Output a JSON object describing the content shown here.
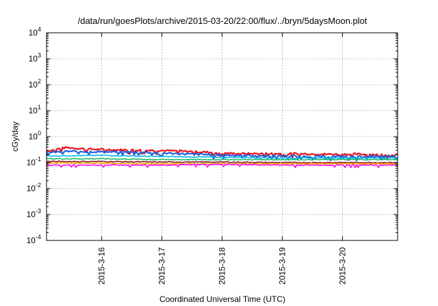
{
  "chart_data": {
    "type": "line",
    "title": "/data/run/goesPlots/archive/2015-03-20/22:00/flux/../bryn/5daysMoon.plot",
    "xlabel": "Coordinated Universal Time (UTC)",
    "ylabel": "cGy/day",
    "yscale": "log",
    "ylim": [
      0.0001,
      10000
    ],
    "xlim": [
      "2015-03-15 02:00",
      "2015-03-20 22:00"
    ],
    "x_ticks": [
      "2015-3-16",
      "2015-3-17",
      "2015-3-18",
      "2015-3-19",
      "2015-3-20"
    ],
    "y_ticks": [
      {
        "base": "10",
        "exp": "4"
      },
      {
        "base": "10",
        "exp": "3"
      },
      {
        "base": "10",
        "exp": "2"
      },
      {
        "base": "10",
        "exp": "1"
      },
      {
        "base": "10",
        "exp": "0"
      },
      {
        "base": "10",
        "exp": "-1"
      },
      {
        "base": "10",
        "exp": "-2"
      },
      {
        "base": "10",
        "exp": "-3"
      },
      {
        "base": "10",
        "exp": "-4"
      }
    ],
    "grid": true,
    "legend": false,
    "colors": [
      "#e8111b",
      "#1f5fe0",
      "#00b8e8",
      "#18b86a",
      "#8b1a1a",
      "#ffaa00",
      "#ff00ff"
    ],
    "series": [
      {
        "color": "#e8111b",
        "x": [
          "2015-03-15 02:00",
          "2015-03-15 06:00",
          "2015-03-15 10:00",
          "2015-03-15 18:00",
          "2015-03-16 06:00",
          "2015-03-16 18:00",
          "2015-03-17 06:00",
          "2015-03-17 18:00",
          "2015-03-18 06:00",
          "2015-03-18 18:00",
          "2015-03-19 06:00",
          "2015-03-19 18:00",
          "2015-03-20 06:00",
          "2015-03-20 22:00"
        ],
        "y": [
          0.27,
          0.33,
          0.38,
          0.33,
          0.31,
          0.3,
          0.28,
          0.25,
          0.22,
          0.22,
          0.22,
          0.21,
          0.21,
          0.2
        ]
      },
      {
        "color": "#1f5fe0",
        "x": [
          "2015-03-15 02:00",
          "2015-03-15 10:00",
          "2015-03-16 00:00",
          "2015-03-16 18:00",
          "2015-03-17 12:00",
          "2015-03-18 06:00",
          "2015-03-19 00:00",
          "2015-03-19 18:00",
          "2015-03-20 22:00"
        ],
        "y": [
          0.24,
          0.27,
          0.26,
          0.25,
          0.21,
          0.19,
          0.18,
          0.17,
          0.17
        ]
      },
      {
        "color": "#00b8e8",
        "x": [
          "2015-03-15 02:00",
          "2015-03-16 00:00",
          "2015-03-17 00:00",
          "2015-03-18 00:00",
          "2015-03-19 00:00",
          "2015-03-20 22:00"
        ],
        "y": [
          0.18,
          0.19,
          0.17,
          0.16,
          0.15,
          0.15
        ]
      },
      {
        "color": "#18b86a",
        "x": [
          "2015-03-15 02:00",
          "2015-03-16 00:00",
          "2015-03-17 00:00",
          "2015-03-18 00:00",
          "2015-03-19 00:00",
          "2015-03-20 22:00"
        ],
        "y": [
          0.14,
          0.14,
          0.13,
          0.13,
          0.13,
          0.13
        ]
      },
      {
        "color": "#8b1a1a",
        "x": [
          "2015-03-15 02:00",
          "2015-03-16 00:00",
          "2015-03-17 00:00",
          "2015-03-18 00:00",
          "2015-03-19 00:00",
          "2015-03-20 22:00"
        ],
        "y": [
          0.11,
          0.11,
          0.105,
          0.105,
          0.1,
          0.1
        ]
      },
      {
        "color": "#ffaa00",
        "x": [
          "2015-03-15 02:00",
          "2015-03-16 00:00",
          "2015-03-17 00:00",
          "2015-03-18 00:00",
          "2015-03-19 00:00",
          "2015-03-20 22:00"
        ],
        "y": [
          0.095,
          0.095,
          0.09,
          0.09,
          0.09,
          0.09
        ]
      },
      {
        "color": "#ff00ff",
        "x": [
          "2015-03-15 02:00",
          "2015-03-16 00:00",
          "2015-03-17 00:00",
          "2015-03-18 00:00",
          "2015-03-19 00:00",
          "2015-03-20 22:00"
        ],
        "y": [
          0.08,
          0.08,
          0.08,
          0.085,
          0.08,
          0.08
        ]
      }
    ]
  }
}
